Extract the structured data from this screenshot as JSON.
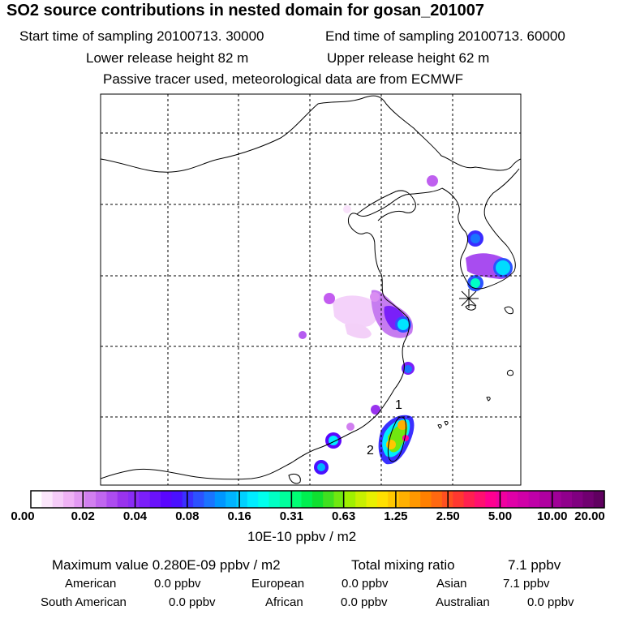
{
  "header": {
    "title": "SO2 source contributions in nested domain for gosan_201007",
    "start": "Start time of sampling 20100713. 30000",
    "end": "End time of sampling 20100713. 60000",
    "lower": "Lower release height   82 m",
    "upper": "Upper release height   62 m",
    "info": "Passive tracer used, meteorological data are from ECMWF"
  },
  "chart_data": {
    "type": "heatmap",
    "title": "SO2 source contributions in nested domain for gosan_201007",
    "annotations": [
      "1",
      "2"
    ],
    "receptor_marker": "asterisk",
    "colorbar": {
      "labels": [
        "0.00",
        "0.02",
        "0.04",
        "0.08",
        "0.16",
        "0.31",
        "0.63",
        "1.25",
        "2.50",
        "5.00",
        "10.00",
        "20.00"
      ],
      "units": "10E-10 ppbv / m2",
      "colors": [
        "#ffffff",
        "#fbe6fb",
        "#f5ccf8",
        "#efb2f5",
        "#e299f2",
        "#d17ff0",
        "#c066ef",
        "#ad4cef",
        "#9933ee",
        "#8a2cf5",
        "#7b1ff9",
        "#6a12fb",
        "#5a06fd",
        "#4a10ff",
        "#3a30ff",
        "#2c52ff",
        "#1a74ff",
        "#0096ff",
        "#00b4ff",
        "#00d0ff",
        "#00ecff",
        "#00ffec",
        "#00ffc4",
        "#00ff9c",
        "#00ff74",
        "#00f050",
        "#10e030",
        "#40e020",
        "#70e810",
        "#a0f000",
        "#c8f000",
        "#e8f000",
        "#ffe000",
        "#ffc800",
        "#ffb000",
        "#ff9800",
        "#ff8000",
        "#ff6810",
        "#ff5020",
        "#ff3830",
        "#ff2050",
        "#ff1070",
        "#ff0090",
        "#f000a0",
        "#e000a8",
        "#d000a8",
        "#c000a8",
        "#b000a0",
        "#a00098",
        "#90008c",
        "#800080",
        "#700070",
        "#600060"
      ]
    }
  },
  "stats": {
    "max_label": "Maximum value  0.280E-09 ppbv / m2",
    "total_label": "Total mixing ratio",
    "total_value": "7.1 ppbv",
    "regions": [
      {
        "name": "American",
        "value": "0.0 ppbv"
      },
      {
        "name": "European",
        "value": "0.0 ppbv"
      },
      {
        "name": "Asian",
        "value": "7.1 ppbv"
      },
      {
        "name": "South American",
        "value": "0.0 ppbv"
      },
      {
        "name": "African",
        "value": "0.0 ppbv"
      },
      {
        "name": "Australian",
        "value": "0.0 ppbv"
      }
    ]
  }
}
